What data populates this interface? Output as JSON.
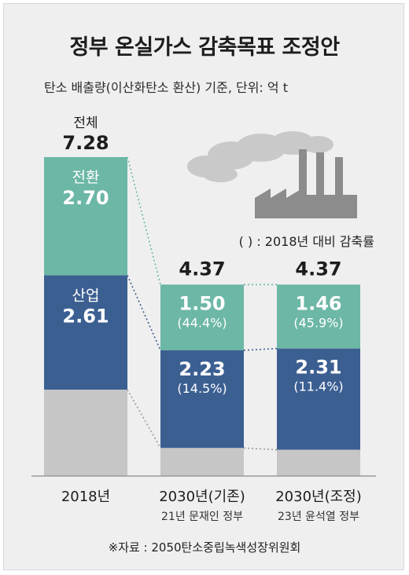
{
  "title": "정부 온실가스 감축목표 조정안",
  "subtitle": "탄소 배출량(이산화탄소 환산) 기준, 단위: 억 t",
  "note": "( ) : 2018년 대비 감축률",
  "source": "※자료 : 2050탄소중립녹색성장위원회",
  "colors": {
    "conversion": "#6cb7a6",
    "industry": "#3c5f92",
    "other": "#c6c6c6",
    "text_light": "#ffffff",
    "text_dark": "#1d1d1d"
  },
  "chart_data": {
    "type": "bar",
    "stacked": true,
    "categories": [
      "2018년",
      "2030년(기존)",
      "2030년(조정)"
    ],
    "category_sublabels": [
      "",
      "21년 문재인 정부",
      "23년 윤석열 정부"
    ],
    "totals": [
      7.28,
      4.37,
      4.37
    ],
    "total_label_prefix": [
      "전체",
      "",
      ""
    ],
    "series": [
      {
        "name": "전환",
        "values": [
          2.7,
          1.5,
          1.46
        ],
        "rates": [
          "",
          "(44.4%)",
          "(45.9%)"
        ]
      },
      {
        "name": "산업",
        "values": [
          2.61,
          2.23,
          2.31
        ],
        "rates": [
          "",
          "(14.5%)",
          "(11.4%)"
        ]
      },
      {
        "values": [
          1.97,
          0.64,
          0.6
        ]
      }
    ],
    "ylim": [
      0,
      7.28
    ]
  }
}
